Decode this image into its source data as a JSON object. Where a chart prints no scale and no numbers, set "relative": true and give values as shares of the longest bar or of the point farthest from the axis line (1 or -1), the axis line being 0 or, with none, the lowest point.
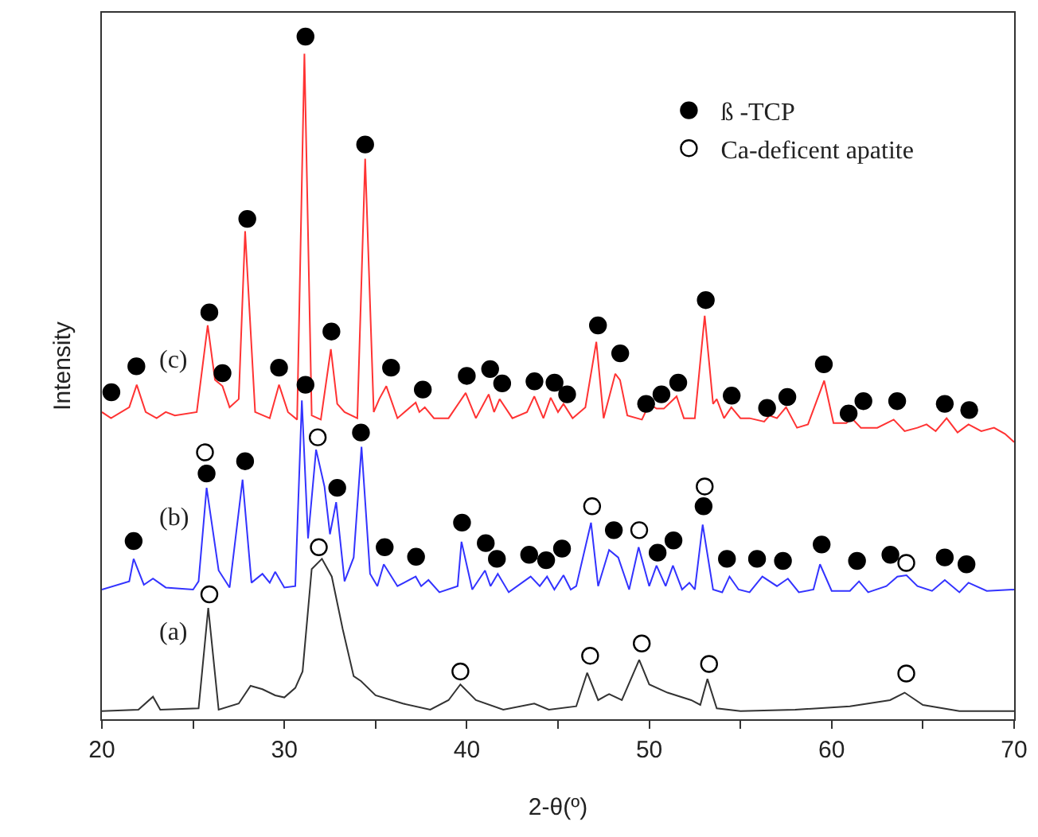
{
  "chart_data": {
    "type": "line",
    "relative": true,
    "xlabel": "2-θ(º)",
    "ylabel": "Intensity",
    "xlim": [
      20,
      70
    ],
    "xticks": [
      20,
      {
        "value": 25,
        "label": null
      },
      30,
      {
        "value": 35,
        "label": null
      },
      40,
      {
        "value": 45,
        "label": null
      },
      50,
      {
        "value": 55,
        "label": null
      },
      60,
      {
        "value": 65,
        "label": null
      },
      70
    ],
    "legend": "top right",
    "tick_labels": "x",
    "annotations": [
      "(c)",
      "(b)",
      "(a)"
    ],
    "series": [
      {
        "color": "#333333",
        "marker": "none",
        "x": [
          20,
          22,
          22.8,
          23.2,
          25.3,
          25.83,
          26.4,
          27.5,
          28.15,
          28.8,
          29.5,
          30.0,
          30.6,
          31.0,
          31.5,
          32.06,
          32.6,
          33.2,
          33.8,
          34.2,
          35,
          36.5,
          38,
          39,
          39.65,
          40.5,
          42,
          43.7,
          44.5,
          46,
          46.6,
          47.2,
          47.8,
          48.5,
          49.45,
          50,
          51,
          52.3,
          52.8,
          53.19,
          53.7,
          55,
          58,
          61,
          63.2,
          64.0,
          65,
          67,
          70
        ],
        "values": [
          0.012,
          0.014,
          0.033,
          0.014,
          0.016,
          0.163,
          0.014,
          0.023,
          0.049,
          0.044,
          0.035,
          0.032,
          0.046,
          0.07,
          0.22,
          0.235,
          0.209,
          0.132,
          0.063,
          0.056,
          0.035,
          0.023,
          0.014,
          0.028,
          0.051,
          0.028,
          0.014,
          0.023,
          0.014,
          0.019,
          0.068,
          0.028,
          0.037,
          0.028,
          0.087,
          0.051,
          0.039,
          0.028,
          0.021,
          0.059,
          0.016,
          0.012,
          0.014,
          0.019,
          0.028,
          0.039,
          0.021,
          0.012,
          0.012
        ]
      },
      {
        "color": "#3333ff",
        "marker": "none",
        "x": [
          20,
          21.5,
          21.74,
          22.3,
          22.8,
          23.5,
          25,
          25.3,
          25.74,
          26.4,
          27.0,
          27.71,
          28.2,
          28.8,
          29.2,
          29.5,
          30.0,
          30.6,
          30.96,
          31.3,
          31.74,
          32.2,
          32.5,
          32.84,
          33.3,
          33.8,
          34.23,
          34.7,
          35.1,
          35.45,
          36.2,
          37.2,
          37.5,
          37.9,
          38.5,
          39.5,
          39.71,
          40.3,
          41.0,
          41.3,
          41.7,
          42.3,
          43.5,
          44.0,
          44.4,
          44.8,
          45.3,
          45.7,
          46.0,
          46.81,
          47.2,
          47.8,
          48.3,
          48.9,
          49.42,
          50.0,
          50.4,
          50.9,
          51.3,
          51.8,
          52.2,
          52.5,
          52.93,
          53.5,
          54.0,
          54.4,
          54.9,
          55.5,
          56.2,
          57.0,
          57.6,
          58.2,
          59.0,
          59.36,
          60.0,
          61.0,
          61.5,
          62.0,
          63.0,
          63.6,
          64.1,
          64.7,
          65.5,
          66.2,
          67.0,
          67.5,
          68.5,
          70
        ],
        "values": [
          0.19,
          0.202,
          0.235,
          0.197,
          0.206,
          0.193,
          0.19,
          0.202,
          0.339,
          0.218,
          0.193,
          0.351,
          0.2,
          0.213,
          0.2,
          0.216,
          0.193,
          0.195,
          0.467,
          0.265,
          0.395,
          0.341,
          0.271,
          0.318,
          0.202,
          0.237,
          0.399,
          0.213,
          0.195,
          0.227,
          0.195,
          0.209,
          0.195,
          0.204,
          0.186,
          0.195,
          0.26,
          0.19,
          0.218,
          0.195,
          0.213,
          0.186,
          0.209,
          0.195,
          0.209,
          0.19,
          0.211,
          0.19,
          0.195,
          0.288,
          0.195,
          0.248,
          0.237,
          0.19,
          0.252,
          0.195,
          0.225,
          0.195,
          0.225,
          0.19,
          0.2,
          0.19,
          0.285,
          0.19,
          0.186,
          0.209,
          0.19,
          0.186,
          0.209,
          0.195,
          0.206,
          0.186,
          0.19,
          0.227,
          0.188,
          0.188,
          0.202,
          0.186,
          0.195,
          0.209,
          0.211,
          0.195,
          0.188,
          0.204,
          0.186,
          0.2,
          0.188,
          0.19
        ]
      },
      {
        "color": "#ff3333",
        "marker": "none",
        "x": [
          20,
          20.5,
          21.5,
          21.91,
          22.4,
          23,
          23.5,
          24,
          25.2,
          25.8,
          26.2,
          26.61,
          27.0,
          27.5,
          27.85,
          28.4,
          29.2,
          29.71,
          30.2,
          30.7,
          31.1,
          31.5,
          32.0,
          32.55,
          32.9,
          33.3,
          34.0,
          34.43,
          34.9,
          35.2,
          35.59,
          36.2,
          37.2,
          37.4,
          37.7,
          38.2,
          39.0,
          39.94,
          40.5,
          41.2,
          41.5,
          41.8,
          42.5,
          43.3,
          43.7,
          44.2,
          44.6,
          45.0,
          45.3,
          45.8,
          46.5,
          47.1,
          47.5,
          48.14,
          48.4,
          48.8,
          49.6,
          50.0,
          50.4,
          50.8,
          51.5,
          51.9,
          52.5,
          53.04,
          53.5,
          53.7,
          54.1,
          54.5,
          55.0,
          55.5,
          56.3,
          56.6,
          57.0,
          57.5,
          58.1,
          58.7,
          59.59,
          60.1,
          60.8,
          61.1,
          61.6,
          62.5,
          63.4,
          64.0,
          64.7,
          65.2,
          65.7,
          66.3,
          66.9,
          67.5,
          68.2,
          68.9,
          69.5,
          70
        ],
        "values": [
          0.45,
          0.441,
          0.457,
          0.49,
          0.45,
          0.441,
          0.45,
          0.445,
          0.45,
          0.577,
          0.497,
          0.488,
          0.457,
          0.469,
          0.715,
          0.45,
          0.441,
          0.49,
          0.45,
          0.439,
          0.975,
          0.445,
          0.439,
          0.542,
          0.462,
          0.45,
          0.441,
          0.821,
          0.45,
          0.469,
          0.488,
          0.441,
          0.464,
          0.45,
          0.457,
          0.441,
          0.441,
          0.478,
          0.441,
          0.476,
          0.45,
          0.469,
          0.441,
          0.45,
          0.473,
          0.441,
          0.471,
          0.45,
          0.462,
          0.441,
          0.457,
          0.553,
          0.441,
          0.506,
          0.497,
          0.445,
          0.439,
          0.462,
          0.455,
          0.455,
          0.473,
          0.441,
          0.441,
          0.591,
          0.462,
          0.469,
          0.441,
          0.457,
          0.441,
          0.441,
          0.436,
          0.445,
          0.441,
          0.457,
          0.427,
          0.432,
          0.496,
          0.434,
          0.434,
          0.441,
          0.427,
          0.427,
          0.439,
          0.422,
          0.427,
          0.432,
          0.422,
          0.441,
          0.42,
          0.432,
          0.422,
          0.427,
          0.418,
          0.406
        ]
      },
      {
        "type": "scatter",
        "name": "ß -TCP",
        "color": "#000000",
        "marker": "circle",
        "x": [
          20.52,
          21.89,
          25.89,
          26.61,
          27.97,
          29.71,
          31.16,
          32.58,
          34.43,
          35.85,
          37.59,
          40.0,
          41.28,
          41.94,
          43.71,
          44.81,
          45.5,
          47.19,
          48.41,
          49.83,
          50.67,
          51.59,
          53.1,
          54.52,
          56.46,
          57.57,
          59.57,
          60.93,
          61.74,
          63.59,
          66.2,
          67.54,
          21.74,
          25.74,
          27.85,
          31.16,
          32.9,
          34.2,
          35.5,
          37.22,
          39.74,
          41.04,
          41.65,
          43.42,
          44.35,
          45.22,
          48.06,
          50.46,
          51.33,
          52.98,
          54.26,
          55.91,
          57.33,
          59.45,
          61.39,
          63.22,
          66.2,
          67.39
        ],
        "values": [
          0.479,
          0.517,
          0.596,
          0.507,
          0.733,
          0.515,
          1.0,
          0.568,
          0.842,
          0.515,
          0.483,
          0.503,
          0.513,
          0.492,
          0.495,
          0.493,
          0.476,
          0.577,
          0.536,
          0.462,
          0.476,
          0.493,
          0.614,
          0.474,
          0.456,
          0.472,
          0.52,
          0.448,
          0.466,
          0.466,
          0.462,
          0.453,
          0.261,
          0.36,
          0.378,
          0.49,
          0.339,
          0.42,
          0.252,
          0.238,
          0.288,
          0.258,
          0.235,
          0.241,
          0.233,
          0.25,
          0.277,
          0.244,
          0.262,
          0.312,
          0.235,
          0.235,
          0.232,
          0.256,
          0.232,
          0.241,
          0.237,
          0.227
        ]
      },
      {
        "type": "scatter",
        "name": "Ca-deficent apatite",
        "color": "#ffffff",
        "marker": "circle",
        "x": [
          25.65,
          31.83,
          46.87,
          49.45,
          53.04,
          64.09,
          25.89,
          31.89,
          39.65,
          46.76,
          49.59,
          53.28,
          64.09
        ],
        "values": [
          0.391,
          0.413,
          0.312,
          0.277,
          0.341,
          0.229,
          0.183,
          0.252,
          0.07,
          0.093,
          0.111,
          0.081,
          0.067
        ]
      }
    ]
  }
}
